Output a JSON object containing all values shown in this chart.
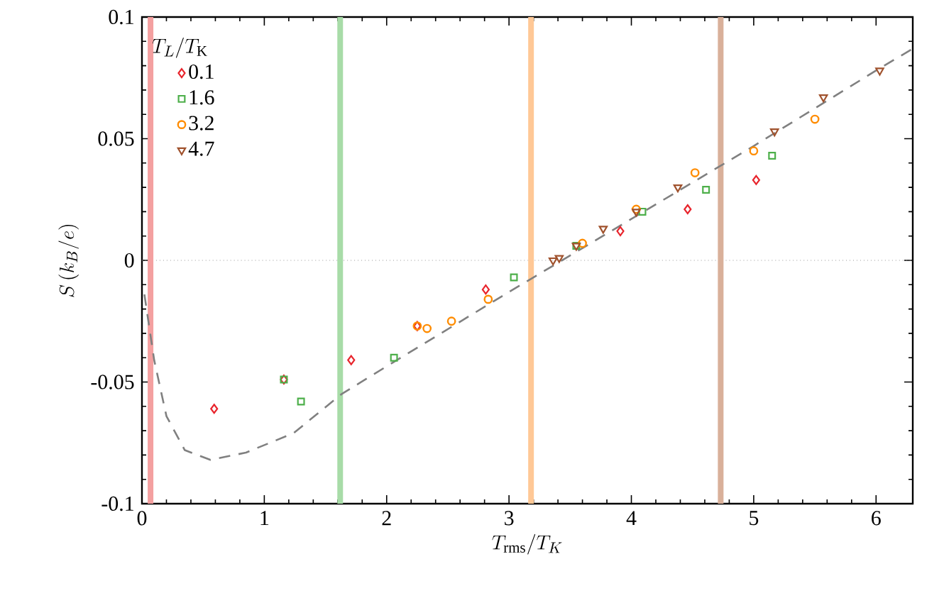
{
  "chart_data": {
    "type": "scatter",
    "xlabel": "T_\\mathrm{rms}/T_K",
    "ylabel": "S\\,(k_B/e)",
    "legend_title": "T_L/T_\\mathrm{K}",
    "xlim": [
      0,
      6.3
    ],
    "ylim": [
      -0.1,
      0.1
    ],
    "xticks": [
      0,
      1,
      2,
      3,
      4,
      5,
      6
    ],
    "yticks": [
      -0.1,
      -0.05,
      0,
      0.05,
      0.1
    ],
    "grid": false,
    "legend": "top left",
    "series": [
      {
        "name": "0.1",
        "color": "#e8242c",
        "marker": "diamond",
        "x": [
          0.59,
          1.16,
          1.71,
          2.25,
          2.81,
          3.91,
          4.46,
          5.02
        ],
        "values": [
          -0.061,
          -0.049,
          -0.041,
          -0.027,
          -0.012,
          0.012,
          0.021,
          0.033
        ]
      },
      {
        "name": "1.6",
        "color": "#4daf4a",
        "marker": "square",
        "x": [
          1.16,
          1.3,
          2.06,
          3.04,
          3.55,
          4.09,
          4.61,
          5.15
        ],
        "values": [
          -0.049,
          -0.058,
          -0.04,
          -0.007,
          0.006,
          0.02,
          0.029,
          0.043
        ]
      },
      {
        "name": "3.2",
        "color": "#ff8c00",
        "marker": "circle",
        "x": [
          2.25,
          2.33,
          2.53,
          2.83,
          3.6,
          4.04,
          4.52,
          5.0,
          5.5
        ],
        "values": [
          -0.027,
          -0.028,
          -0.025,
          -0.016,
          0.007,
          0.021,
          0.036,
          0.045,
          0.058
        ]
      },
      {
        "name": "4.7",
        "color": "#a0522d",
        "marker": "triangle",
        "x": [
          3.36,
          3.41,
          3.55,
          3.77,
          4.04,
          4.38,
          5.17,
          5.57,
          6.03
        ],
        "values": [
          0.0,
          0.001,
          0.006,
          0.013,
          0.02,
          0.03,
          0.053,
          0.067,
          0.078
        ]
      },
      {
        "type": "line",
        "color": "#808080",
        "line_style": "dashed",
        "marker": "none",
        "x": [
          0.02,
          0.1,
          0.2,
          0.35,
          0.56,
          0.85,
          1.24,
          1.63,
          2.05,
          3.0,
          4.0,
          5.0,
          6.0,
          6.3
        ],
        "values": [
          -0.014,
          -0.041,
          -0.064,
          -0.078,
          -0.082,
          -0.079,
          -0.071,
          -0.055,
          -0.042,
          -0.013,
          0.017,
          0.047,
          0.078,
          0.087
        ]
      }
    ],
    "ref_lines": [
      {
        "axis": "y",
        "value": 0,
        "color": "#999999",
        "line_style": "dotted"
      },
      {
        "axis": "x",
        "value": 0.07,
        "color": "#f4a0a0",
        "line_style": "solid"
      },
      {
        "axis": "x",
        "value": 1.62,
        "color": "#a8dca8",
        "line_style": "solid"
      },
      {
        "axis": "x",
        "value": 3.18,
        "color": "#ffc896",
        "line_style": "solid"
      },
      {
        "axis": "x",
        "value": 4.73,
        "color": "#d9b09a",
        "line_style": "solid"
      }
    ]
  }
}
